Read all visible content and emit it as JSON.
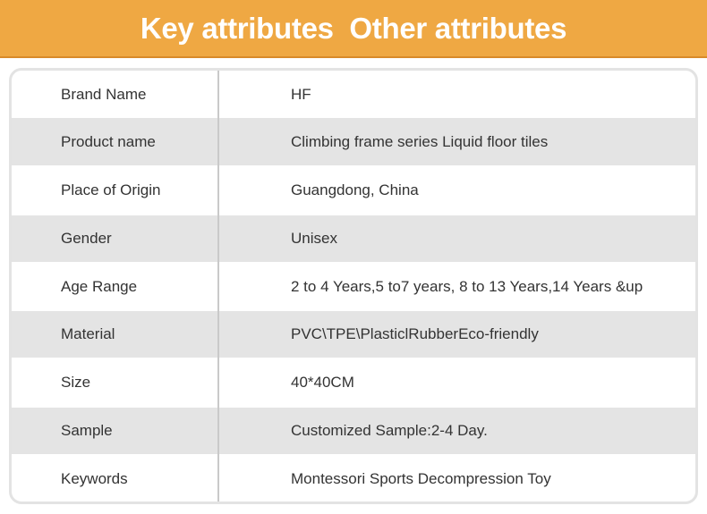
{
  "header": {
    "title": "Key attributes  Other attributes",
    "background": "#EFA843"
  },
  "rows": [
    {
      "label": "Brand Name",
      "value": "HF"
    },
    {
      "label": "Product name",
      "value": "Climbing frame series Liquid floor tiles"
    },
    {
      "label": "Place of Origin",
      "value": "Guangdong, China"
    },
    {
      "label": "Gender",
      "value": "Unisex"
    },
    {
      "label": "Age Range",
      "value": "2 to 4 Years,5 to7 years, 8 to 13 Years,14 Years &up"
    },
    {
      "label": "Material",
      "value": "PVC\\TPE\\PlasticlRubberEco-friendly"
    },
    {
      "label": "Size",
      "value": "40*40CM"
    },
    {
      "label": "Sample",
      "value": "Customized Sample:2-4 Day."
    },
    {
      "label": "Keywords",
      "value": "Montessori Sports Decompression Toy"
    }
  ]
}
